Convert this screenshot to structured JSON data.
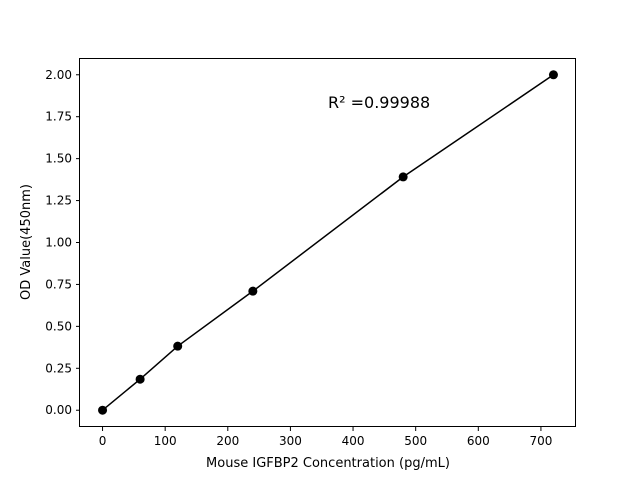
{
  "chart_data": {
    "type": "line",
    "title": "",
    "xlabel": "Mouse IGFBP2 Concentration (pg/mL)",
    "ylabel": "OD Value(450nm)",
    "xlim": [
      -36,
      756
    ],
    "ylim": [
      -0.1,
      2.1
    ],
    "xticks": [
      0,
      100,
      200,
      300,
      400,
      500,
      600,
      700
    ],
    "yticks": [
      "0.00",
      "0.25",
      "0.50",
      "0.75",
      "1.00",
      "1.25",
      "1.50",
      "1.75",
      "2.00"
    ],
    "grid": false,
    "x": [
      0,
      60,
      120,
      240,
      480,
      720
    ],
    "y": [
      0.0,
      0.185,
      0.382,
      0.71,
      1.391,
      2.0
    ],
    "line_color": "#000000",
    "marker": "circle",
    "annotation": "R² =0.99988"
  }
}
